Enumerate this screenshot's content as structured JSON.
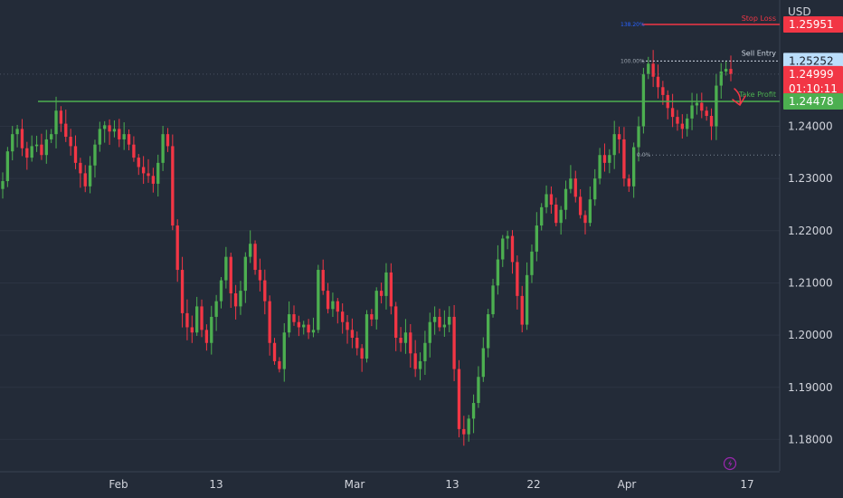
{
  "chart_data": {
    "type": "candlestick",
    "currency_label": "USD",
    "y_ticks": [
      "1.18000",
      "1.19000",
      "1.20000",
      "1.21000",
      "1.22000",
      "1.23000",
      "1.24000"
    ],
    "y_range": [
      1.174,
      1.2642
    ],
    "x_ticks": [
      "Feb",
      "13",
      "Mar",
      "13",
      "22",
      "Apr",
      "17"
    ],
    "price_labels": {
      "stop_loss": "1.25951",
      "sell_entry": "1.25252",
      "current": "1.24999",
      "countdown": "01:10:11",
      "take_profit": "1.24478"
    },
    "level_values": {
      "stop_loss": 1.25951,
      "sell_entry": 1.25252,
      "current": 1.24999,
      "take_profit": 1.24478,
      "fib_zero": 1.2345
    },
    "annotations": {
      "stop_loss": "Stop Loss",
      "sell_entry": "Sell Entry",
      "take_profit": "Take Profit",
      "fib_high": "138.20%",
      "fib_mid": "100.00%",
      "fib_low": "0.0%"
    },
    "candle_closes": [
      1.2295,
      1.2352,
      1.2385,
      1.2395,
      1.2358,
      1.234,
      1.2362,
      1.2365,
      1.2345,
      1.2375,
      1.2385,
      1.243,
      1.2405,
      1.238,
      1.2362,
      1.233,
      1.231,
      1.2285,
      1.2325,
      1.2365,
      1.2395,
      1.2402,
      1.239,
      1.2395,
      1.2375,
      1.2385,
      1.2365,
      1.234,
      1.2322,
      1.231,
      1.2305,
      1.229,
      1.233,
      1.2385,
      1.2362,
      1.221,
      1.2125,
      1.2042,
      1.2015,
      1.2005,
      1.2055,
      1.201,
      1.1985,
      1.2035,
      1.2065,
      1.2105,
      1.215,
      1.208,
      1.2055,
      1.2085,
      1.215,
      1.2175,
      1.2125,
      1.2105,
      1.2065,
      1.1985,
      1.195,
      1.1935,
      1.2005,
      1.204,
      1.2025,
      1.2015,
      1.202,
      1.2005,
      1.201,
      1.2125,
      1.2085,
      1.205,
      1.2065,
      1.2045,
      1.2025,
      1.201,
      1.1995,
      1.1975,
      1.1955,
      1.204,
      1.203,
      1.2085,
      1.2075,
      1.212,
      1.2055,
      1.1995,
      1.1985,
      1.2005,
      1.1965,
      1.1935,
      1.195,
      1.1985,
      1.2025,
      1.2035,
      1.2015,
      1.202,
      1.2035,
      1.1935,
      1.182,
      1.181,
      1.184,
      1.187,
      1.192,
      1.1975,
      1.204,
      1.2095,
      1.2145,
      1.2185,
      1.219,
      1.214,
      1.2075,
      1.202,
      1.2115,
      1.216,
      1.221,
      1.2245,
      1.227,
      1.225,
      1.2215,
      1.224,
      1.228,
      1.23,
      1.2265,
      1.223,
      1.2215,
      1.226,
      1.23,
      1.2345,
      1.233,
      1.2345,
      1.2385,
      1.2375,
      1.23,
      1.2285,
      1.236,
      1.24,
      1.25,
      1.252,
      1.2495,
      1.2475,
      1.246,
      1.2435,
      1.2418,
      1.2405,
      1.2395,
      1.2415,
      1.244,
      1.2445,
      1.243,
      1.242,
      1.24,
      1.2478,
      1.2505,
      1.251,
      1.25
    ]
  }
}
